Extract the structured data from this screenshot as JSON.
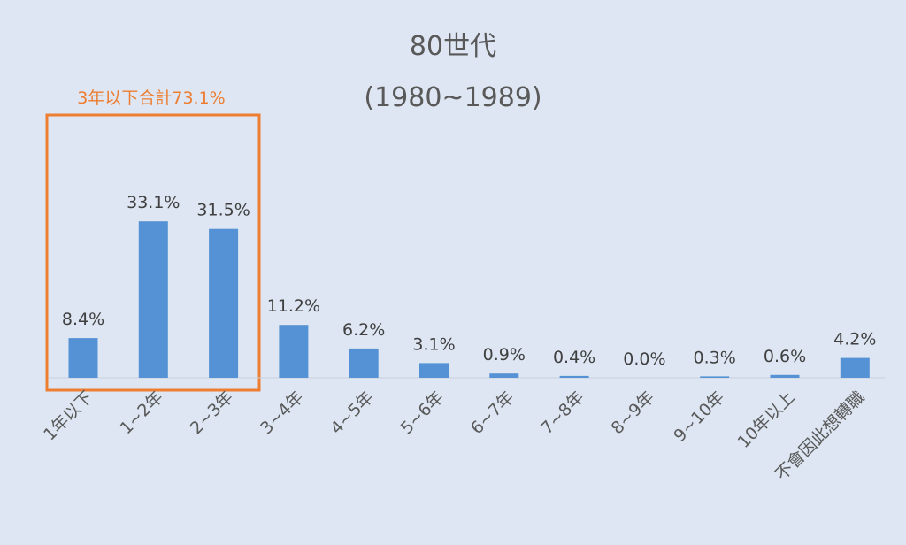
{
  "chart_data": {
    "type": "bar",
    "title": "80世代",
    "subtitle": "(1980~1989)",
    "categories": [
      "1年以下",
      "1~2年",
      "2~3年",
      "3~4年",
      "4~5年",
      "5~6年",
      "6~7年",
      "7~8年",
      "8~9年",
      "9~10年",
      "10年以上",
      "不會因此想轉職"
    ],
    "values": [
      8.4,
      33.1,
      31.5,
      11.2,
      6.2,
      3.1,
      0.9,
      0.4,
      0.0,
      0.3,
      0.6,
      4.2
    ],
    "value_labels": [
      "8.4%",
      "33.1%",
      "31.5%",
      "11.2%",
      "6.2%",
      "3.1%",
      "0.9%",
      "0.4%",
      "0.0%",
      "0.3%",
      "0.6%",
      "4.2%"
    ],
    "ylim": [
      0,
      35
    ],
    "grid": false,
    "legend": "none",
    "bar_color": "#5591d5",
    "annotation": {
      "text": "3年以下合計73.1%",
      "color": "#ed7d31",
      "covers_categories": [
        "1年以下",
        "1~2年",
        "2~3年"
      ]
    }
  }
}
